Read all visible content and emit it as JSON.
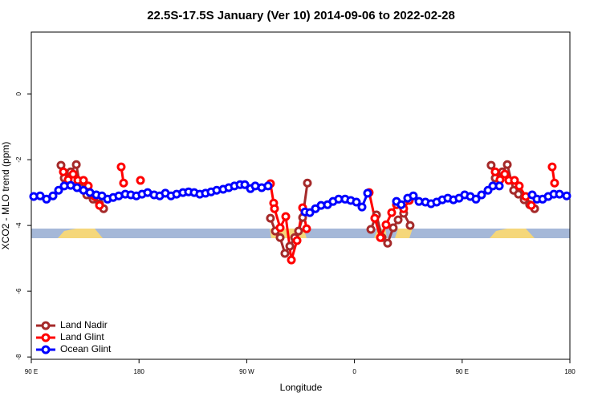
{
  "chart_data": {
    "type": "line",
    "title": "22.5S-17.5S January (Ver 10)   2014-09-06 to 2022-02-28",
    "xlabel": "Longitude",
    "ylabel": "XCO2 - MLO trend (ppm)",
    "xlim": [
      90,
      540
    ],
    "ylim": [
      -8.07,
      1.88
    ],
    "xticks": [
      {
        "value": 90,
        "label": "90 E"
      },
      180,
      {
        "value": 270,
        "label": "90 W"
      },
      {
        "value": 360,
        "label": "0"
      },
      {
        "value": 450,
        "label": "90 E"
      },
      {
        "value": 540,
        "label": "180"
      }
    ],
    "yticks": [
      0,
      -2,
      -4,
      -6,
      -8
    ],
    "legend": "bottomleft",
    "series": [
      {
        "name": "Land Nadir",
        "color": "#a52a2a",
        "x": [
          114.8,
          117.5,
          122.9,
          127.6,
          130.9,
          136.3,
          141.6,
          147.0,
          150.4,
          null,
          289.8,
          293.9,
          297.9,
          301.9,
          306.0,
          310.0,
          313.3,
          316.7,
          320.7,
          null,
          373.7,
          378.4,
          383.1,
          387.7,
          392.4,
          396.5,
          401.1,
          406.5,
          null,
          474.2,
          477.6,
          483.6,
          487.7,
          493.0,
          497.0,
          501.8,
          506.4,
          510.5
        ],
        "values": [
          -2.17,
          -2.56,
          -2.37,
          -2.15,
          -2.85,
          -3.07,
          -3.2,
          -3.34,
          -3.49,
          null,
          -3.78,
          -4.17,
          -4.37,
          -4.85,
          -4.63,
          -4.37,
          -4.17,
          -3.76,
          -2.71,
          null,
          -4.12,
          -3.68,
          -4.37,
          -4.54,
          -4.07,
          -3.83,
          -3.63,
          -4.0,
          null,
          -2.17,
          -2.56,
          -2.37,
          -2.15,
          -2.93,
          -3.05,
          -3.22,
          -3.37,
          -3.49
        ]
      },
      {
        "name": "Land Glint",
        "color": "#ff0000",
        "x": [
          116.8,
          120.8,
          124.9,
          128.9,
          133.6,
          137.6,
          143.0,
          147.0,
          null,
          165.1,
          167.1,
          null,
          181.2,
          null,
          289.8,
          292.5,
          293.2,
          297.9,
          302.6,
          307.3,
          312.0,
          316.7,
          320.0,
          null,
          372.3,
          377.0,
          381.7,
          386.4,
          391.1,
          395.1,
          401.1,
          405.8,
          null,
          477.6,
          481.6,
          485.6,
          489.0,
          493.7,
          497.7,
          503.1,
          507.8,
          null,
          525.2,
          527.2
        ],
        "values": [
          -2.37,
          -2.61,
          -2.44,
          -2.63,
          -2.63,
          -2.8,
          -3.12,
          -3.39,
          null,
          -2.22,
          -2.71,
          null,
          -2.63,
          null,
          -2.73,
          -3.32,
          -3.49,
          -4.07,
          -3.73,
          -5.05,
          -4.46,
          -3.46,
          -4.1,
          null,
          -3.0,
          -3.78,
          -4.37,
          -3.98,
          -3.61,
          -3.37,
          -3.49,
          -3.24,
          null,
          -2.37,
          -2.61,
          -2.44,
          -2.63,
          -2.63,
          -2.8,
          -3.12,
          -3.39,
          null,
          -2.22,
          -2.71
        ]
      },
      {
        "name": "Ocean Glint",
        "color": "#0000ff",
        "x": [
          92.0,
          97.4,
          102.7,
          108.1,
          112.8,
          117.5,
          122.9,
          128.2,
          133.6,
          139.0,
          144.3,
          149.0,
          153.7,
          158.4,
          163.1,
          168.5,
          173.2,
          177.8,
          182.5,
          187.2,
          192.6,
          197.3,
          202.0,
          206.7,
          211.4,
          216.7,
          221.4,
          226.1,
          230.8,
          235.5,
          240.2,
          244.9,
          250.3,
          255.0,
          259.7,
          264.4,
          268.4,
          273.1,
          277.1,
          282.5,
          287.8,
          null,
          318.7,
          322.7,
          327.4,
          332.1,
          337.5,
          342.1,
          346.8,
          352.2,
          356.9,
          361.6,
          366.3,
          371.0,
          null,
          395.1,
          399.1,
          404.5,
          409.2,
          413.9,
          419.3,
          424.0,
          428.7,
          433.4,
          438.0,
          442.7,
          447.4,
          452.1,
          456.8,
          461.5,
          466.2,
          471.6,
          475.6,
          481.0,
          null,
          508.5,
          512.5,
          517.2,
          521.9,
          526.6,
          531.3,
          537.3
        ],
        "values": [
          -3.12,
          -3.1,
          -3.2,
          -3.1,
          -2.93,
          -2.8,
          -2.78,
          -2.85,
          -2.93,
          -3.0,
          -3.07,
          -3.1,
          -3.2,
          -3.15,
          -3.1,
          -3.05,
          -3.07,
          -3.1,
          -3.05,
          -3.0,
          -3.07,
          -3.1,
          -3.02,
          -3.1,
          -3.05,
          -3.0,
          -2.98,
          -3.0,
          -3.05,
          -3.02,
          -2.98,
          -2.93,
          -2.9,
          -2.85,
          -2.8,
          -2.76,
          -2.76,
          -2.88,
          -2.8,
          -2.85,
          -2.8,
          null,
          -3.59,
          -3.61,
          -3.49,
          -3.39,
          -3.37,
          -3.27,
          -3.2,
          -3.2,
          -3.24,
          -3.29,
          -3.44,
          -3.02,
          null,
          -3.27,
          -3.37,
          -3.17,
          -3.1,
          -3.27,
          -3.29,
          -3.34,
          -3.29,
          -3.22,
          -3.17,
          -3.22,
          -3.17,
          -3.07,
          -3.12,
          -3.2,
          -3.07,
          -2.93,
          -2.8,
          -2.8,
          null,
          -3.07,
          -3.2,
          -3.2,
          -3.12,
          -3.05,
          -3.05,
          -3.1
        ]
      }
    ]
  }
}
